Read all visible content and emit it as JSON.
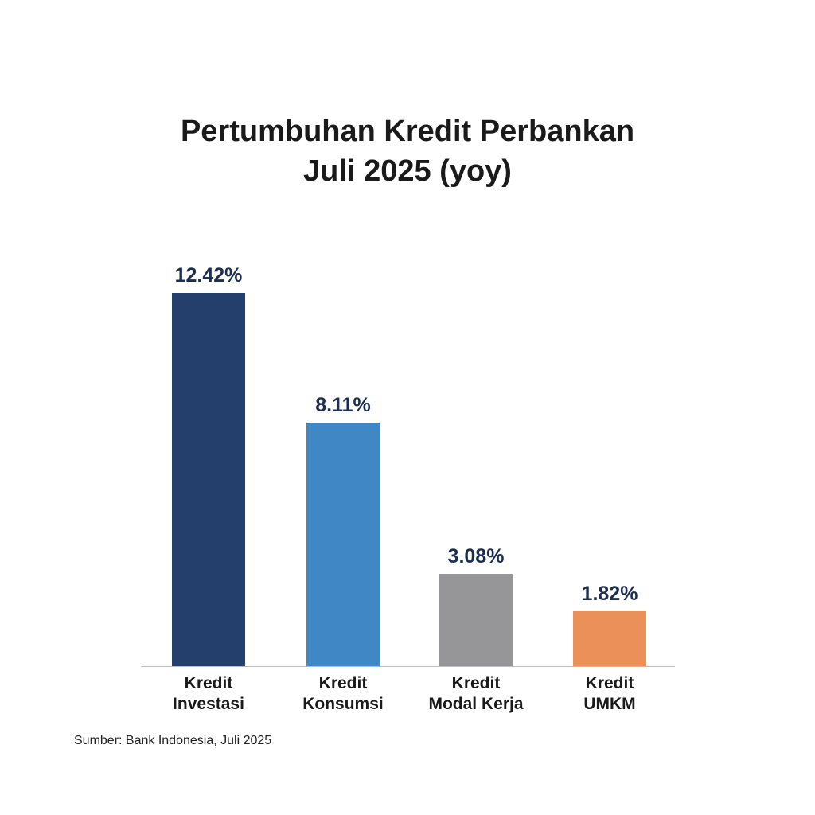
{
  "chart_data": {
    "type": "bar",
    "title": "Pertumbuhan Kredit Perbankan\nJuli 2025 (yoy)",
    "categories": [
      "Kredit\nInvestasi",
      "Kredit\nKonsumsi",
      "Kredit\nModal Kerja",
      "Kredit\nUMKM"
    ],
    "values": [
      12.42,
      8.11,
      3.08,
      1.82
    ],
    "value_labels": [
      "12.42%",
      "8.11%",
      "3.08%",
      "1.82%"
    ],
    "colors": [
      "#243f6b",
      "#3f87c5",
      "#969699",
      "#ec9059"
    ],
    "source": "Sumber: Bank Indonesia, Juli 2025"
  }
}
